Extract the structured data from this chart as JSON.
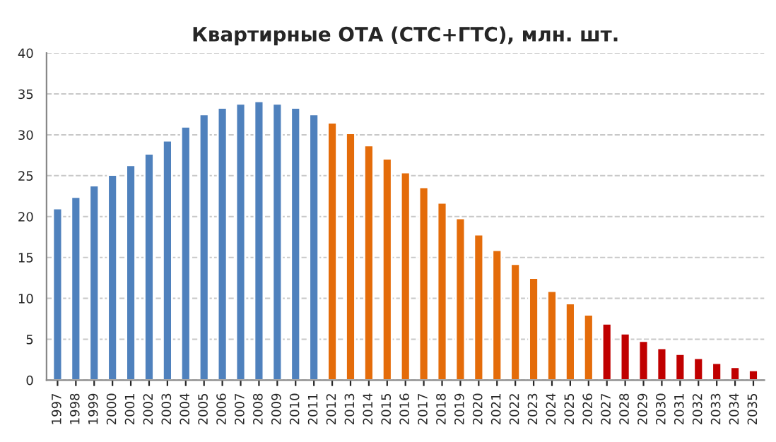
{
  "chart_data": {
    "type": "bar",
    "title": "Квартирные ОТА (СТС+ГТС), млн. шт.",
    "categories": [
      "1997",
      "1998",
      "1999",
      "2000",
      "2001",
      "2002",
      "2003",
      "2004",
      "2005",
      "2006",
      "2007",
      "2008",
      "2009",
      "2010",
      "2011",
      "2012",
      "2013",
      "2014",
      "2015",
      "2016",
      "2017",
      "2018",
      "2019",
      "2020",
      "2021",
      "2022",
      "2023",
      "2024",
      "2025",
      "2026",
      "2027",
      "2028",
      "2029",
      "2030",
      "2031",
      "2032",
      "2033",
      "2034",
      "2035"
    ],
    "values": [
      21.0,
      22.4,
      23.8,
      25.1,
      26.3,
      27.7,
      29.3,
      31.0,
      32.5,
      33.3,
      33.8,
      34.1,
      33.8,
      33.3,
      32.5,
      31.5,
      30.2,
      28.7,
      27.1,
      25.4,
      23.6,
      21.7,
      19.8,
      17.8,
      15.9,
      14.2,
      12.5,
      10.9,
      9.4,
      8.0,
      6.9,
      5.7,
      4.8,
      3.9,
      3.2,
      2.7,
      2.1,
      1.6,
      1.2
    ],
    "colors": [
      "#4f81bd",
      "#4f81bd",
      "#4f81bd",
      "#4f81bd",
      "#4f81bd",
      "#4f81bd",
      "#4f81bd",
      "#4f81bd",
      "#4f81bd",
      "#4f81bd",
      "#4f81bd",
      "#4f81bd",
      "#4f81bd",
      "#4f81bd",
      "#4f81bd",
      "#e46c0a",
      "#e46c0a",
      "#e46c0a",
      "#e46c0a",
      "#e46c0a",
      "#e46c0a",
      "#e46c0a",
      "#e46c0a",
      "#e46c0a",
      "#e46c0a",
      "#e46c0a",
      "#e46c0a",
      "#e46c0a",
      "#e46c0a",
      "#e46c0a",
      "#c00000",
      "#c00000",
      "#c00000",
      "#c00000",
      "#c00000",
      "#c00000",
      "#c00000",
      "#c00000",
      "#c00000"
    ],
    "ylim": [
      0,
      40
    ],
    "yticks": [
      0,
      5,
      10,
      15,
      20,
      25,
      30,
      35,
      40
    ],
    "grid": "y",
    "legend": false
  }
}
